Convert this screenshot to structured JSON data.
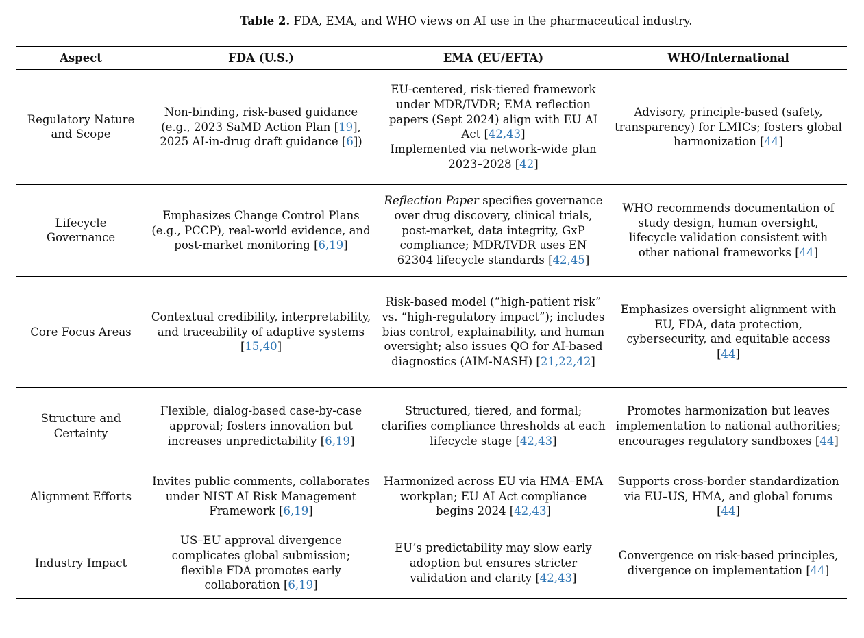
{
  "caption": {
    "label": "Table 2.",
    "text": "FDA, EMA, and WHO views on AI use in the pharmaceutical industry."
  },
  "table": {
    "citation_color": "#2f76b5",
    "headers": [
      "Aspect",
      "FDA (U.S.)",
      "EMA (EU/EFTA)",
      "WHO/International"
    ],
    "rows": [
      {
        "aspect": "Regulatory Nature and Scope",
        "fda": "Non-binding, risk-based guidance (e.g., 2023 SaMD Action Plan [19], 2025 AI-in-drug draft guidance [6])",
        "ema": "EU-centered, risk-tiered framework under MDR/IVDR; EMA reflection papers (Sept 2024) align with EU AI Act [42,43]\nImplemented via network-wide plan 2023–2028 [42]",
        "who": "Advisory, principle-based (safety, transparency) for LMICs; fosters global harmonization [44]"
      },
      {
        "aspect": "Lifecycle Governance",
        "fda": "Emphasizes Change Control Plans (e.g., PCCP), real-world evidence, and post-market monitoring [6,19]",
        "ema": "*Reflection Paper* specifies governance over drug discovery, clinical trials, post-market, data integrity, GxP compliance; MDR/IVDR uses EN 62304 lifecycle standards [42,45]",
        "who": "WHO recommends documentation of study design, human oversight, lifecycle validation consistent with other national frameworks [44]"
      },
      {
        "aspect": "Core Focus Areas",
        "fda": "Contextual credibility, interpretability, and traceability of adaptive systems [15,40]",
        "ema": "Risk-based model (“high-patient risk” vs. “high-regulatory impact”); includes bias control, explainability, and human oversight; also issues QO for AI-based diagnostics (AIM-NASH) [21,22,42]",
        "who": "Emphasizes oversight alignment with EU, FDA, data protection, cybersecurity, and equitable access [44]"
      },
      {
        "aspect": "Structure and Certainty",
        "fda": "Flexible, dialog-based case-by-case approval; fosters innovation but increases unpredictability [6,19]",
        "ema": "Structured, tiered, and formal; clarifies compliance thresholds at each lifecycle stage [42,43]",
        "who": "Promotes harmonization but leaves implementation to national authorities; encourages regulatory sandboxes [44]"
      },
      {
        "aspect": "Alignment Efforts",
        "fda": "Invites public comments, collaborates under NIST AI Risk Management Framework [6,19]",
        "ema": "Harmonized across EU via HMA–EMA workplan; EU AI Act compliance begins 2024 [42,43]",
        "who": "Supports cross-border standardization via EU–US, HMA, and global forums [44]"
      },
      {
        "aspect": "Industry Impact",
        "fda": "US–EU approval divergence complicates global submission; flexible FDA promotes early collaboration [6,19]",
        "ema": "EU’s predictability may slow early adoption but ensures stricter validation and clarity [42,43]",
        "who": "Convergence on risk-based principles, divergence on implementation [44]"
      }
    ]
  }
}
